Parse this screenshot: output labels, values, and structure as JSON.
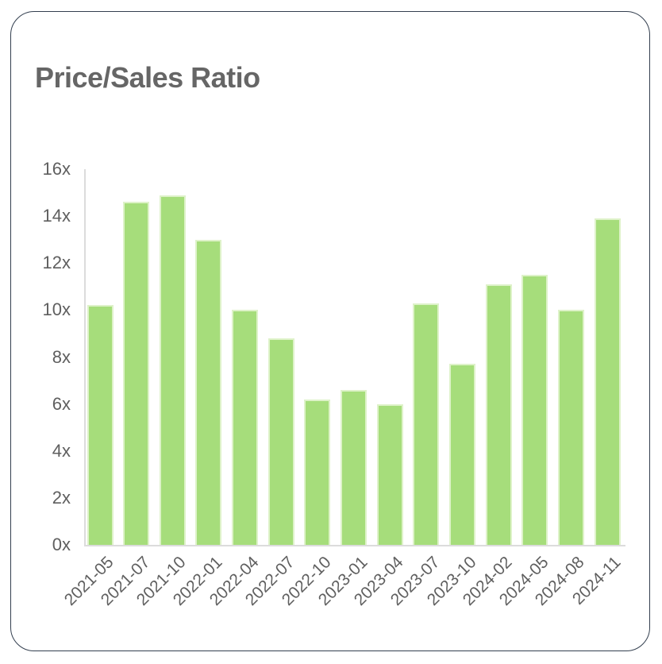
{
  "card": {
    "border_color": "#333f4f",
    "background": "#ffffff"
  },
  "chart_data": {
    "type": "bar",
    "title": "Price/Sales Ratio",
    "categories": [
      "2021-05",
      "2021-07",
      "2021-10",
      "2022-01",
      "2022-04",
      "2022-07",
      "2022-10",
      "2023-01",
      "2023-04",
      "2023-07",
      "2023-10",
      "2024-02",
      "2024-05",
      "2024-08",
      "2024-11"
    ],
    "values": [
      10.2,
      14.6,
      14.9,
      13.0,
      10.0,
      8.8,
      6.2,
      6.6,
      6.0,
      10.3,
      7.7,
      11.1,
      11.5,
      10.0,
      13.9
    ],
    "value_suffix": "x",
    "xlabel": "",
    "ylabel": "",
    "ylim": [
      0,
      16
    ],
    "ytick_step": 2,
    "ytick_labels": [
      "0x",
      "2x",
      "4x",
      "6x",
      "8x",
      "10x",
      "12x",
      "14x",
      "16x"
    ],
    "grid": false,
    "legend": "none",
    "x_label_rotation_deg": -45,
    "colors": {
      "bar_fill": "#a6dd7b",
      "bar_stroke": "#def2c9",
      "axis_line": "#dcdcdc",
      "tick_label": "#5f5f5f",
      "title": "#666666"
    }
  }
}
